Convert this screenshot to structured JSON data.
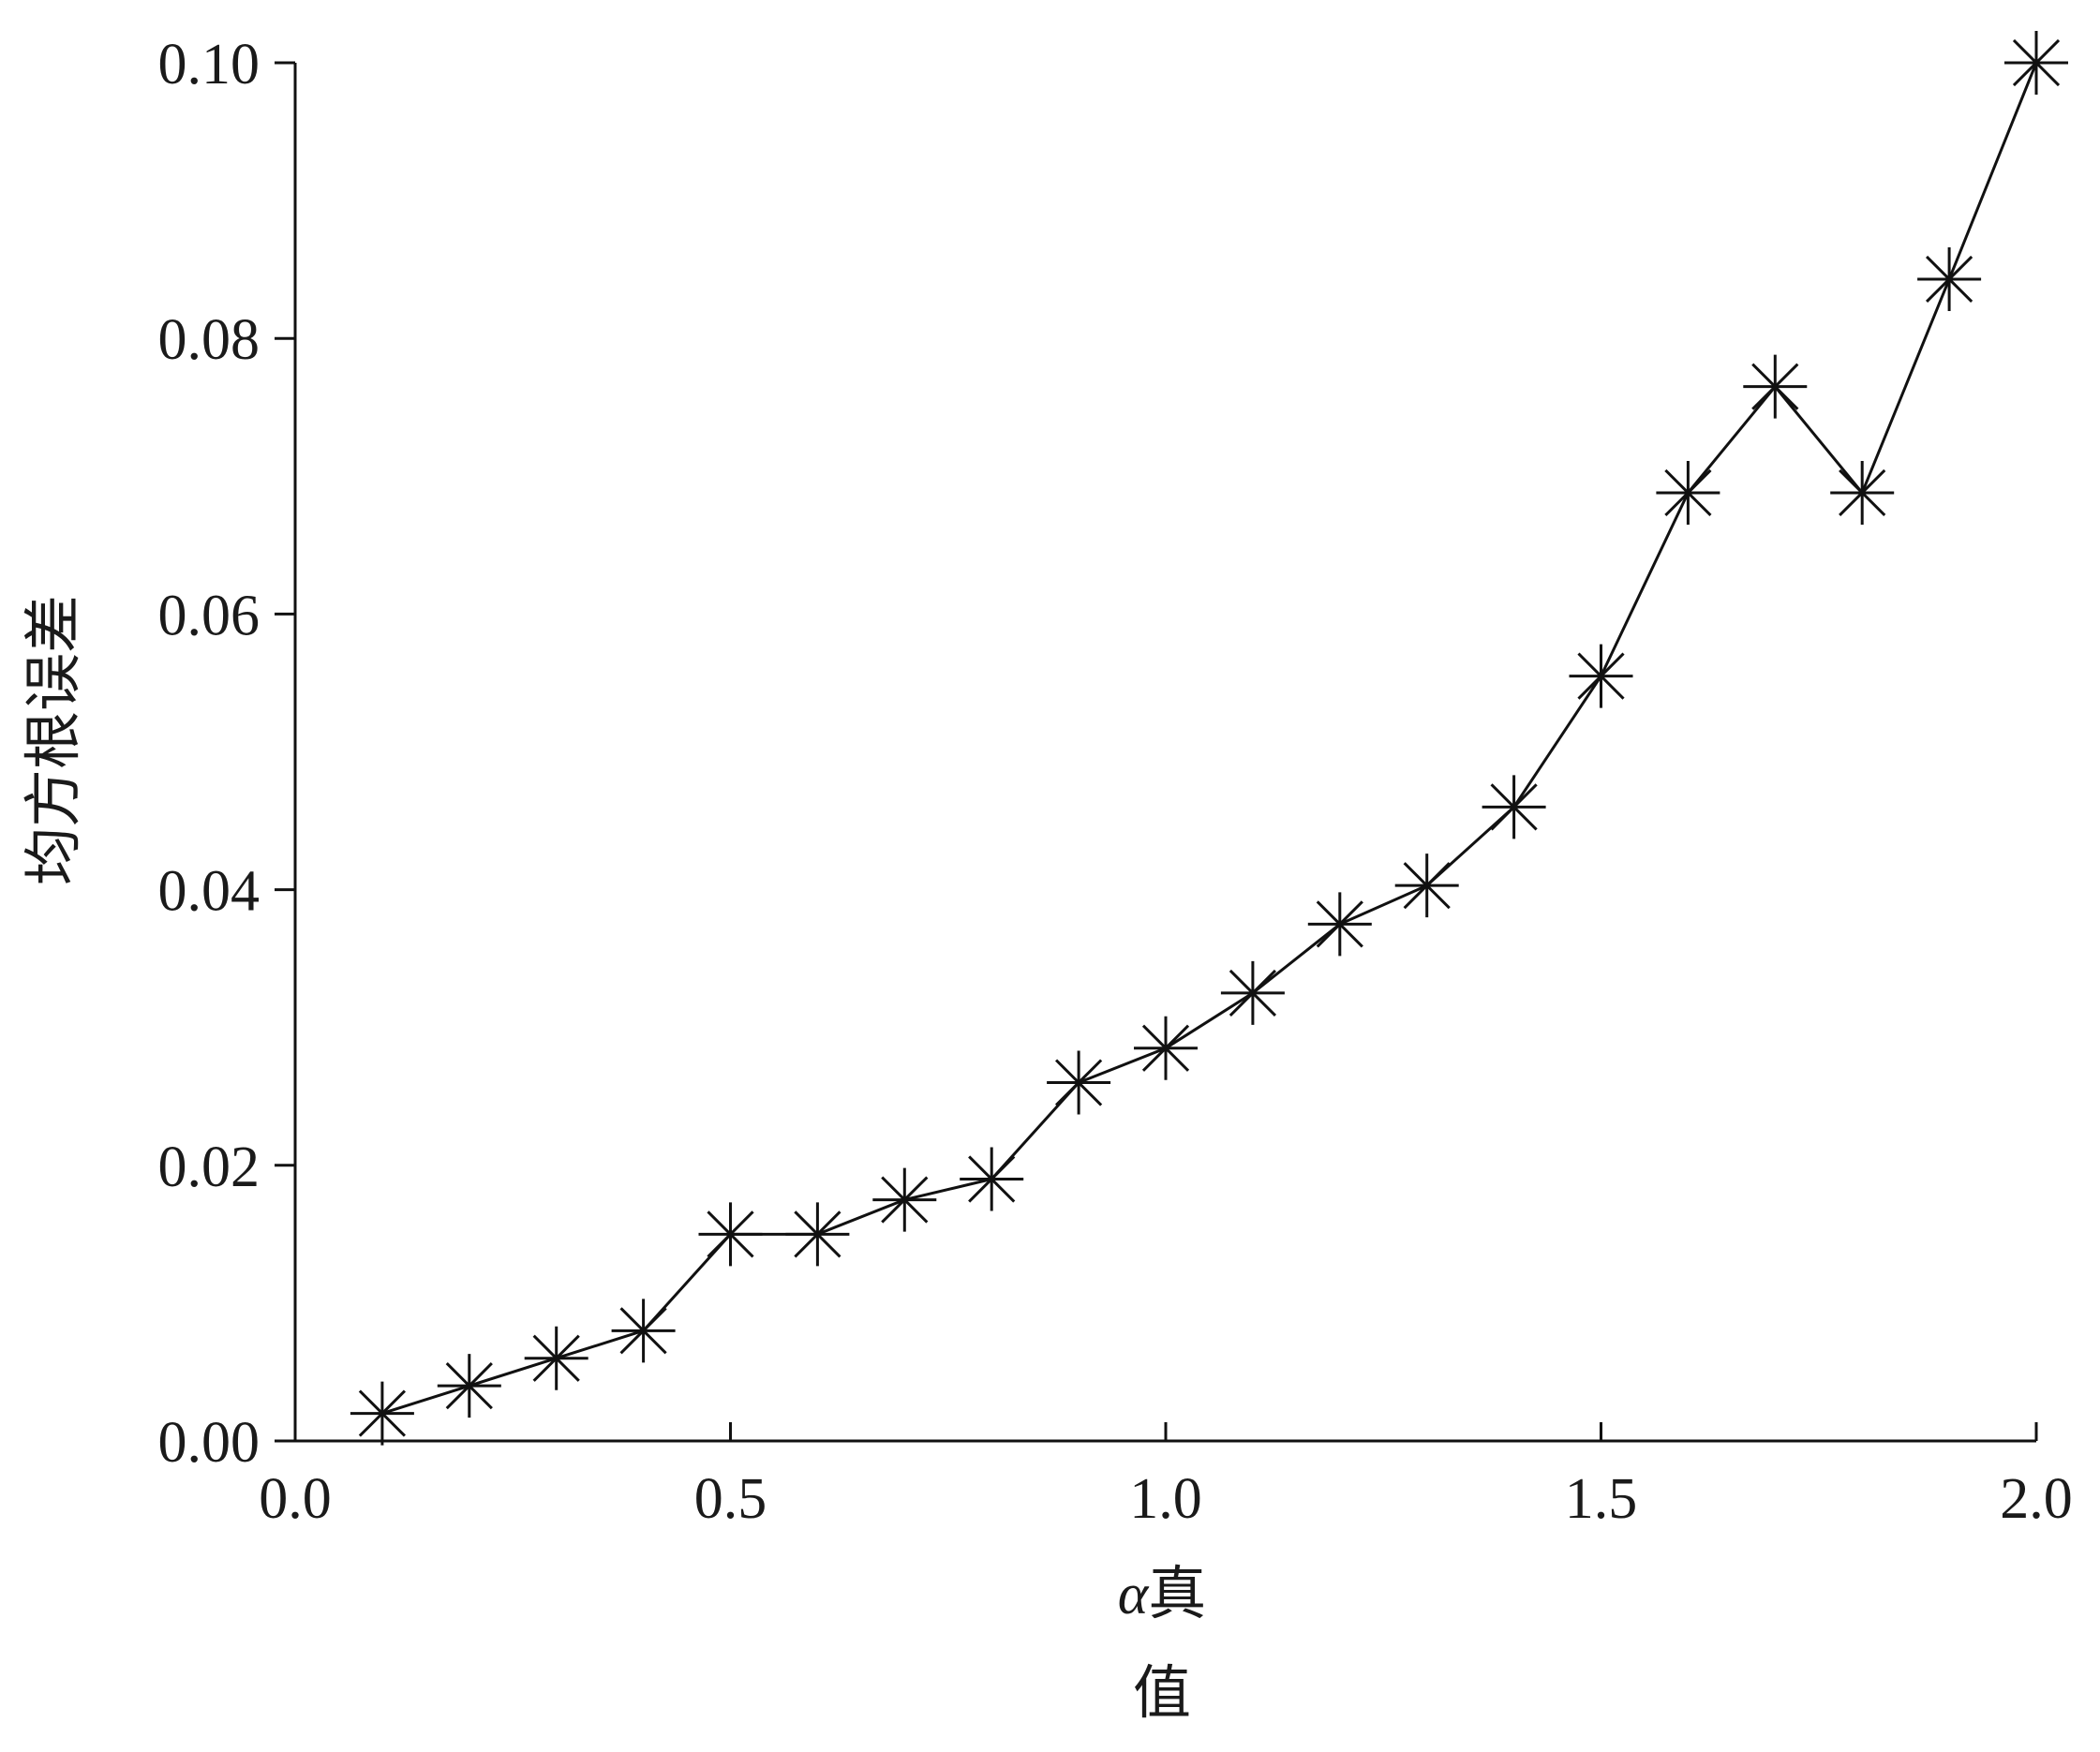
{
  "chart_data": {
    "type": "line",
    "marker": "asterisk",
    "xlabel_symbol": "α",
    "xlabel_line1": "真",
    "xlabel_line2": "值",
    "ylabel": "均方根误差",
    "xlim": [
      0.0,
      2.0
    ],
    "ylim": [
      0.0,
      0.1
    ],
    "x_ticks": [
      "0.0",
      "0.5",
      "1.0",
      "1.5",
      "2.0"
    ],
    "y_ticks": [
      "0.00",
      "0.02",
      "0.04",
      "0.06",
      "0.08",
      "0.10"
    ],
    "grid": false,
    "legend": "none",
    "series": [
      {
        "x": [
          0.1,
          0.2,
          0.3,
          0.4,
          0.5,
          0.6,
          0.7,
          0.8,
          0.9,
          1.0,
          1.1,
          1.2,
          1.3,
          1.4,
          1.5,
          1.6,
          1.7,
          1.8,
          1.9,
          2.0
        ],
        "y": [
          0.002,
          0.004,
          0.006,
          0.008,
          0.015,
          0.015,
          0.0175,
          0.019,
          0.026,
          0.0285,
          0.0325,
          0.0375,
          0.0403,
          0.046,
          0.0555,
          0.0688,
          0.0765,
          0.0688,
          0.0843,
          0.1
        ]
      }
    ],
    "colors": {
      "line": "#111111",
      "axis": "#111111",
      "text": "#1a1a1a"
    }
  }
}
